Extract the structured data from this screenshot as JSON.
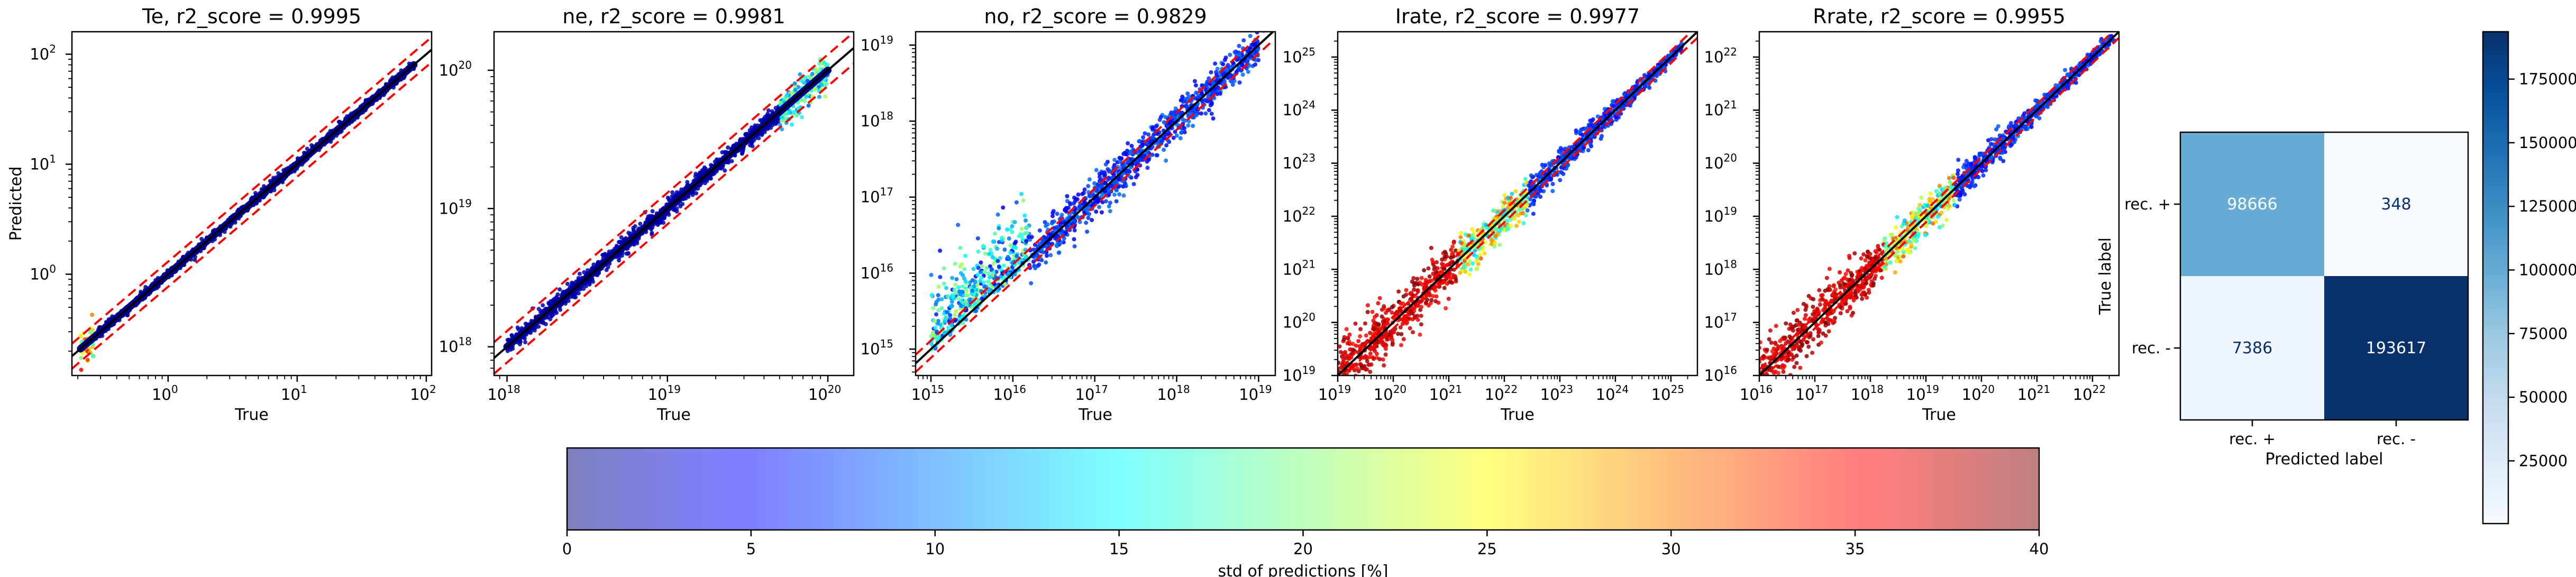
{
  "chart_data": [
    {
      "type": "scatter",
      "title": "Te, r2_score = 0.9995",
      "xlabel": "True",
      "ylabel": "Predicted",
      "x_scale": "log",
      "y_scale": "log",
      "xlim": [
        0.18,
        110
      ],
      "ylim": [
        0.12,
        160
      ],
      "x_ticks": [
        {
          "base": "10",
          "exp": "0",
          "value": 1
        },
        {
          "base": "10",
          "exp": "1",
          "value": 10
        },
        {
          "base": "10",
          "exp": "2",
          "value": 100
        }
      ],
      "y_ticks": [
        {
          "base": "10",
          "exp": "0",
          "value": 1
        },
        {
          "base": "10",
          "exp": "1",
          "value": 10
        },
        {
          "base": "10",
          "exp": "2",
          "value": 100
        }
      ],
      "data_range": [
        0.21,
        80
      ],
      "band_factor": 1.3,
      "std_level": 2,
      "spread": 0.02,
      "low_end_outliers": true
    },
    {
      "type": "scatter",
      "title": "ne, r2_score = 0.9981",
      "xlabel": "True",
      "ylabel": "",
      "x_scale": "log",
      "y_scale": "log",
      "xlim": [
        8.3e+17,
        1.45e+20
      ],
      "ylim": [
        6.2e+17,
        1.9e+20
      ],
      "x_ticks": [
        {
          "base": "10",
          "exp": "18",
          "value": 1e+18
        },
        {
          "base": "10",
          "exp": "19",
          "value": 1e+19
        },
        {
          "base": "10",
          "exp": "20",
          "value": 1e+20
        }
      ],
      "y_ticks": [
        {
          "base": "10",
          "exp": "18",
          "value": 1e+18
        },
        {
          "base": "10",
          "exp": "19",
          "value": 1e+19
        },
        {
          "base": "10",
          "exp": "20",
          "value": 1e+20
        }
      ],
      "data_range": [
        1e+18,
        1e+20
      ],
      "band_factor": 1.3,
      "std_level": 4,
      "spread": 0.03,
      "high_end_spread": true
    },
    {
      "type": "scatter",
      "title": "no, r2_score = 0.9829",
      "xlabel": "True",
      "ylabel": "",
      "x_scale": "log",
      "y_scale": "log",
      "xlim": [
        650000000000000.0,
        1.6e+19
      ],
      "ylim": [
        450000000000000.0,
        1.5e+19
      ],
      "x_ticks": [
        {
          "base": "10",
          "exp": "15",
          "value": 1000000000000000.0
        },
        {
          "base": "10",
          "exp": "16",
          "value": 1e+16
        },
        {
          "base": "10",
          "exp": "17",
          "value": 1e+17
        },
        {
          "base": "10",
          "exp": "18",
          "value": 1e+18
        },
        {
          "base": "10",
          "exp": "19",
          "value": 1e+19
        }
      ],
      "y_ticks": [
        {
          "base": "10",
          "exp": "15",
          "value": 1000000000000000.0
        },
        {
          "base": "10",
          "exp": "16",
          "value": 1e+16
        },
        {
          "base": "10",
          "exp": "17",
          "value": 1e+17
        },
        {
          "base": "10",
          "exp": "18",
          "value": 1e+18
        },
        {
          "base": "10",
          "exp": "19",
          "value": 1e+19
        }
      ],
      "data_range": [
        1000000000000000.0,
        1e+19
      ],
      "band_factor": 1.3,
      "std_level": 10,
      "spread": 0.18,
      "low_end_cloud": true
    },
    {
      "type": "scatter",
      "title": "Irate, r2_score = 0.9977",
      "xlabel": "True",
      "ylabel": "",
      "x_scale": "log",
      "y_scale": "log",
      "xlim": [
        1e+19,
        3e+25
      ],
      "ylim": [
        1e+19,
        3e+25
      ],
      "x_ticks": [
        {
          "base": "10",
          "exp": "19",
          "value": 1e+19
        },
        {
          "base": "10",
          "exp": "20",
          "value": 1e+20
        },
        {
          "base": "10",
          "exp": "21",
          "value": 1e+21
        },
        {
          "base": "10",
          "exp": "22",
          "value": 1e+22
        },
        {
          "base": "10",
          "exp": "23",
          "value": 1e+23
        },
        {
          "base": "10",
          "exp": "24",
          "value": 1e+24
        },
        {
          "base": "10",
          "exp": "25",
          "value": 1e+25
        }
      ],
      "y_ticks": [
        {
          "base": "10",
          "exp": "19",
          "value": 1e+19
        },
        {
          "base": "10",
          "exp": "20",
          "value": 1e+20
        },
        {
          "base": "10",
          "exp": "21",
          "value": 1e+21
        },
        {
          "base": "10",
          "exp": "22",
          "value": 1e+22
        },
        {
          "base": "10",
          "exp": "23",
          "value": 1e+23
        },
        {
          "base": "10",
          "exp": "24",
          "value": 1e+24
        },
        {
          "base": "10",
          "exp": "25",
          "value": 1e+25
        }
      ],
      "data_range": [
        1e+19,
        1.6e+25
      ],
      "band_factor": 1.3,
      "std_level": 30,
      "spread": 0.15,
      "noisy_low_end": true
    },
    {
      "type": "scatter",
      "title": "Rrate, r2_score = 0.9955",
      "xlabel": "True",
      "ylabel": "",
      "x_scale": "log",
      "y_scale": "log",
      "xlim": [
        1e+16,
        3e+22
      ],
      "ylim": [
        1e+16,
        3e+22
      ],
      "x_ticks": [
        {
          "base": "10",
          "exp": "16",
          "value": 1e+16
        },
        {
          "base": "10",
          "exp": "17",
          "value": 1e+17
        },
        {
          "base": "10",
          "exp": "18",
          "value": 1e+18
        },
        {
          "base": "10",
          "exp": "19",
          "value": 1e+19
        },
        {
          "base": "10",
          "exp": "20",
          "value": 1e+20
        },
        {
          "base": "10",
          "exp": "21",
          "value": 1e+21
        },
        {
          "base": "10",
          "exp": "22",
          "value": 1e+22
        }
      ],
      "y_ticks": [
        {
          "base": "10",
          "exp": "16",
          "value": 1e+16
        },
        {
          "base": "10",
          "exp": "17",
          "value": 1e+17
        },
        {
          "base": "10",
          "exp": "18",
          "value": 1e+18
        },
        {
          "base": "10",
          "exp": "19",
          "value": 1e+19
        },
        {
          "base": "10",
          "exp": "20",
          "value": 1e+20
        },
        {
          "base": "10",
          "exp": "21",
          "value": 1e+21
        },
        {
          "base": "10",
          "exp": "22",
          "value": 1e+22
        }
      ],
      "data_range": [
        1e+16,
        2.5e+22
      ],
      "band_factor": 1.3,
      "std_level": 30,
      "spread": 0.15,
      "noisy_low_end": true
    },
    {
      "type": "heatmap",
      "title": "",
      "xlabel": "Predicted label",
      "ylabel": "True label",
      "x_categories": [
        "rec. +",
        "rec. -"
      ],
      "y_categories": [
        "rec. +",
        "rec. -"
      ],
      "values": [
        [
          98666,
          348
        ],
        [
          7386,
          193617
        ]
      ],
      "value_labels": [
        [
          "98666",
          "348"
        ],
        [
          "7386",
          "193617"
        ]
      ],
      "colormap": "Blues",
      "colorbar": {
        "range": [
          348,
          193617
        ],
        "ticks": [
          25000,
          50000,
          75000,
          100000,
          125000,
          150000,
          175000
        ],
        "tick_labels": [
          "25000",
          "50000",
          "75000",
          "100000",
          "125000",
          "150000",
          "175000"
        ]
      }
    }
  ],
  "shared_colorbar": {
    "label": "std of predictions [%]",
    "range": [
      0,
      40
    ],
    "ticks": [
      0,
      5,
      10,
      15,
      20,
      25,
      30,
      35,
      40
    ],
    "tick_labels": [
      "0",
      "5",
      "10",
      "15",
      "20",
      "25",
      "30",
      "35",
      "40"
    ],
    "colormap": "jet",
    "alpha": 0.5
  },
  "colors": {
    "ideal_line": "#000000",
    "band_lines": "#ff0000",
    "cm_text_light": "#ffffff",
    "cm_text_dark": "#08306b"
  }
}
